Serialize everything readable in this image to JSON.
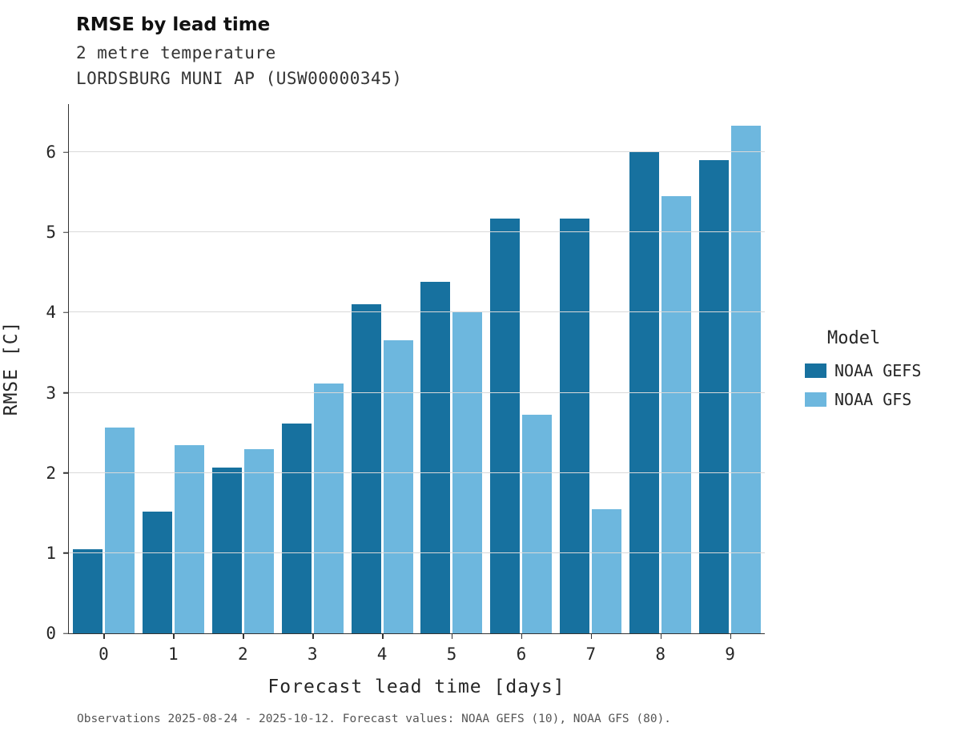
{
  "title": "RMSE by lead time",
  "subtitle_line1": "2 metre temperature",
  "subtitle_line2": "LORDSBURG MUNI AP (USW00000345)",
  "footer_caption": "Observations 2025-08-24 - 2025-10-12. Forecast values: NOAA GEFS (10), NOAA GFS (80).",
  "legend": {
    "title": "Model",
    "entries": [
      {
        "label": "NOAA GEFS",
        "color": "#17719f"
      },
      {
        "label": "NOAA GFS",
        "color": "#6db7de"
      }
    ]
  },
  "colors": {
    "gefs_dark_blue": "#17719f",
    "gfs_light_blue": "#6db7de",
    "gridline": "#d9d9d9",
    "axis": "#333333"
  },
  "chart_data": {
    "type": "bar",
    "title": "RMSE by lead time",
    "subtitle": "2 metre temperature — LORDSBURG MUNI AP (USW00000345)",
    "xlabel": "Forecast lead time [days]",
    "ylabel": "RMSE [C]",
    "categories": [
      "0",
      "1",
      "2",
      "3",
      "4",
      "5",
      "6",
      "7",
      "8",
      "9"
    ],
    "series": [
      {
        "name": "NOAA GEFS",
        "color": "#17719f",
        "values": [
          1.05,
          1.52,
          2.07,
          2.62,
          4.1,
          4.38,
          5.17,
          5.17,
          6.0,
          5.9
        ]
      },
      {
        "name": "NOAA GFS",
        "color": "#6db7de",
        "values": [
          2.57,
          2.35,
          2.3,
          3.12,
          3.65,
          4.0,
          2.73,
          1.55,
          5.45,
          6.33
        ]
      }
    ],
    "ylim": [
      0,
      6.6
    ],
    "yticks": [
      0,
      1,
      2,
      3,
      4,
      5,
      6
    ],
    "grid": true,
    "legend_title": "Model",
    "legend_position": "right"
  }
}
